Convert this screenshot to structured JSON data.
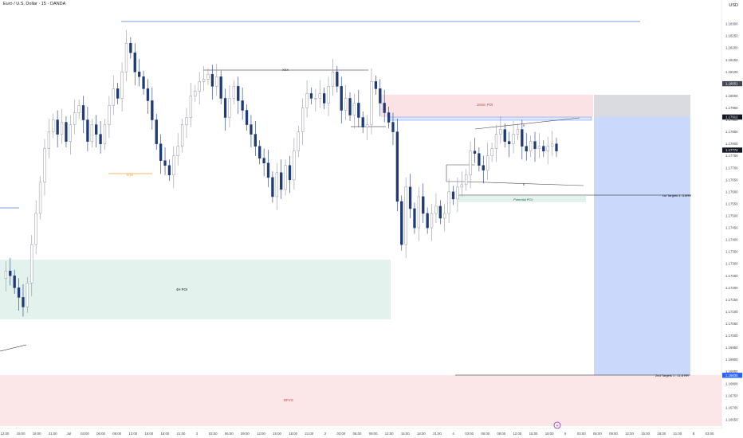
{
  "header": {
    "title": "Euro / U.S. Dollar · 15 · OANDA",
    "currency": "USD"
  },
  "chart_data": {
    "type": "candlestick",
    "price_axis": {
      "ylim": [
        1.1663,
        1.1837
      ],
      "ticks": [
        "1.18300",
        "1.18250",
        "1.18200",
        "1.18150",
        "1.18100",
        "1.18050",
        "1.18000",
        "1.17950",
        "1.17900",
        "1.17850",
        "1.17800",
        "1.17750",
        "1.17700",
        "1.17650",
        "1.17600",
        "1.17550",
        "1.17500",
        "1.17450",
        "1.17400",
        "1.17350",
        "1.17300",
        "1.17250",
        "1.17200",
        "1.17150",
        "1.17100",
        "1.17050",
        "1.17000",
        "1.16950",
        "1.16900",
        "1.16850",
        "1.16800",
        "1.16750",
        "1.16700",
        "1.16650"
      ],
      "highlighted_labels": [
        {
          "value": 1.18051,
          "text": "1.18051",
          "color": "#434651"
        },
        {
          "value": 1.17912,
          "text": "1.17912",
          "color": "#131722"
        },
        {
          "value": 1.17774,
          "text": "1.17774",
          "color": "#131722"
        },
        {
          "value": 1.16835,
          "text": "1.16835",
          "color": "#2962ff"
        }
      ]
    },
    "time_axis": {
      "labels": [
        "12:00",
        "15:00",
        "18:00",
        "21:00",
        "Jul",
        "03:00",
        "06:00",
        "09:00",
        "12:00",
        "15:00",
        "18:00",
        "21:00",
        "2",
        "03:00",
        "06:00",
        "09:00",
        "12:00",
        "15:00",
        "18:00",
        "21:00",
        "3",
        "03:00",
        "06:00",
        "09:00",
        "12:00",
        "15:00",
        "18:00",
        "21:00",
        "4",
        "03:00",
        "06:00",
        "09:00",
        "12:00",
        "15:00",
        "18:00",
        "6",
        "03:00",
        "06:00",
        "09:00",
        "12:00",
        "15:00",
        "18:00",
        "21:00",
        "8",
        "03:00"
      ]
    },
    "price_path": [
      1.1724,
      1.1727,
      1.1725,
      1.172,
      1.1716,
      1.1712,
      1.1722,
      1.1738,
      1.1751,
      1.1764,
      1.1778,
      1.1785,
      1.179,
      1.1784,
      1.1789,
      1.1781,
      1.1788,
      1.1793,
      1.1796,
      1.179,
      1.1781,
      1.1788,
      1.1784,
      1.178,
      1.1788,
      1.1796,
      1.1803,
      1.1799,
      1.181,
      1.1822,
      1.1818,
      1.181,
      1.1808,
      1.1803,
      1.1798,
      1.179,
      1.178,
      1.1773,
      1.1771,
      1.1767,
      1.1775,
      1.1779,
      1.1788,
      1.1791,
      1.18,
      1.1802,
      1.1806,
      1.1807,
      1.1809,
      1.1804,
      1.1808,
      1.1799,
      1.1791,
      1.1799,
      1.1804,
      1.1798,
      1.1794,
      1.1788,
      1.1784,
      1.1779,
      1.1774,
      1.1772,
      1.1766,
      1.1758,
      1.1768,
      1.1761,
      1.1771,
      1.1765,
      1.1777,
      1.1785,
      1.1795,
      1.1801,
      1.1799,
      1.1799,
      1.1801,
      1.1797,
      1.1804,
      1.181,
      1.1804,
      1.1794,
      1.1799,
      1.1792,
      1.1797,
      1.1791,
      1.1787,
      1.1788,
      1.1806,
      1.1803,
      1.1797,
      1.1793,
      1.1789,
      1.1785,
      1.1756,
      1.1738,
      1.1762,
      1.1753,
      1.1745,
      1.1758,
      1.1751,
      1.1745,
      1.1751,
      1.1754,
      1.1749,
      1.1751,
      1.176,
      1.1757,
      1.1762,
      1.1763,
      1.1767,
      1.1777,
      1.1776,
      1.1771,
      1.1769,
      1.1775,
      1.1778,
      1.1784,
      1.1786,
      1.1781,
      1.178,
      1.1784,
      1.1786,
      1.1779,
      1.1777,
      1.1781,
      1.1778,
      1.1779,
      1.1777,
      1.1779,
      1.178,
      1.1777
    ],
    "zones": [
      {
        "label": "15min POI",
        "type": "supply"
      },
      {
        "label": "4H POI",
        "type": "demand"
      },
      {
        "label": "Potential POI",
        "type": "demand"
      },
      {
        "label": "DFVG",
        "type": "supply"
      },
      {
        "label": "Position",
        "type": "short",
        "entry": 1.17912,
        "stop": 1.18051,
        "target": 1.16835
      }
    ],
    "annotations": [
      {
        "text": "XXX"
      },
      {
        "text": "EQH"
      },
      {
        "text": "X"
      },
      {
        "text": "X"
      },
      {
        "text": "1st Targets 1: 5.6RR"
      },
      {
        "text": "2nd Targets 1 : 11.8 RR"
      },
      {
        "text": "④"
      }
    ]
  }
}
